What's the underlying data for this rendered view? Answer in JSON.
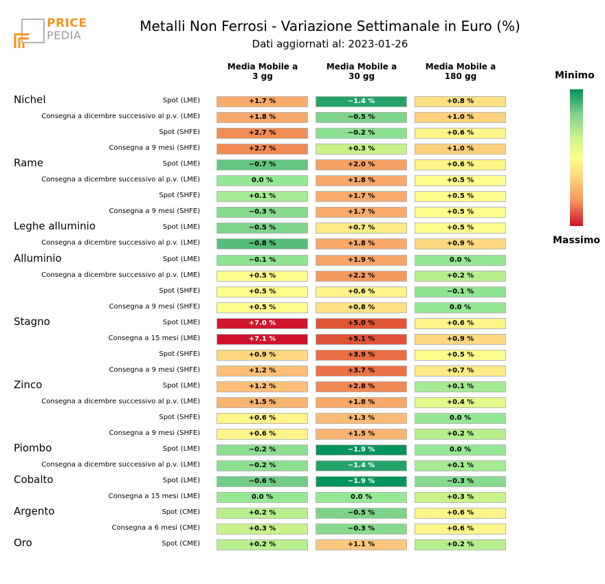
{
  "header": {
    "logo_line1": "PRICE",
    "logo_line2": "PEDIA",
    "title": "Metalli Non Ferrosi - Variazione Settimanale in Euro (%)",
    "subtitle": "Dati aggiornati al: 2023-01-26"
  },
  "legend": {
    "top_label": "Minimo",
    "bottom_label": "Massimo",
    "colors": [
      "#00915a",
      "#7dd38a",
      "#c8f28a",
      "#ffff8c",
      "#ffd27d",
      "#f5945c",
      "#d0102a"
    ]
  },
  "chart_data": {
    "type": "heatmap",
    "title": "Metalli Non Ferrosi - Variazione Settimanale in Euro (%)",
    "columns": [
      "Media Mobile a\n3 gg",
      "Media Mobile a\n30 gg",
      "Media Mobile a\n180 gg"
    ],
    "color_min": -2.0,
    "color_max": 7.1,
    "groups": [
      {
        "metal": "Nichel",
        "rows": [
          {
            "label": "Spot (LME)",
            "values": [
              1.7,
              -1.4,
              0.8
            ],
            "text": [
              "+1.7 %",
              "−1.4 %",
              "+0.8 %"
            ]
          },
          {
            "label": "Consegna a dicembre successivo al p.v. (LME)",
            "values": [
              1.8,
              -0.5,
              1.0
            ],
            "text": [
              "+1.8 %",
              "−0.5 %",
              "+1.0 %"
            ]
          },
          {
            "label": "Spot (SHFE)",
            "values": [
              2.7,
              -0.2,
              0.6
            ],
            "text": [
              "+2.7 %",
              "−0.2 %",
              "+0.6 %"
            ]
          },
          {
            "label": "Consegna a 9 mesi (SHFE)",
            "values": [
              2.7,
              0.3,
              1.0
            ],
            "text": [
              "+2.7 %",
              "+0.3 %",
              "+1.0 %"
            ]
          }
        ]
      },
      {
        "metal": "Rame",
        "rows": [
          {
            "label": "Spot (LME)",
            "values": [
              -0.7,
              2.0,
              0.6
            ],
            "text": [
              "−0.7 %",
              "+2.0 %",
              "+0.6 %"
            ]
          },
          {
            "label": "Consegna a dicembre successivo al p.v. (LME)",
            "values": [
              0.0,
              1.8,
              0.5
            ],
            "text": [
              "0.0 %",
              "+1.8 %",
              "+0.5 %"
            ]
          },
          {
            "label": "Spot (SHFE)",
            "values": [
              0.1,
              1.7,
              0.5
            ],
            "text": [
              "+0.1 %",
              "+1.7 %",
              "+0.5 %"
            ]
          },
          {
            "label": "Consegna a 9 mesi (SHFE)",
            "values": [
              -0.3,
              1.7,
              0.5
            ],
            "text": [
              "−0.3 %",
              "+1.7 %",
              "+0.5 %"
            ]
          }
        ]
      },
      {
        "metal": "Leghe alluminio",
        "rows": [
          {
            "label": "Spot (LME)",
            "values": [
              -0.5,
              0.7,
              0.5
            ],
            "text": [
              "−0.5 %",
              "+0.7 %",
              "+0.5 %"
            ]
          },
          {
            "label": "Consegna a dicembre successivo al p.v. (LME)",
            "values": [
              -0.8,
              1.8,
              0.9
            ],
            "text": [
              "−0.8 %",
              "+1.8 %",
              "+0.9 %"
            ]
          }
        ]
      },
      {
        "metal": "Alluminio",
        "rows": [
          {
            "label": "Spot (LME)",
            "values": [
              -0.1,
              1.9,
              0.0
            ],
            "text": [
              "−0.1 %",
              "+1.9 %",
              "0.0 %"
            ]
          },
          {
            "label": "Consegna a dicembre successivo al p.v. (LME)",
            "values": [
              0.5,
              2.2,
              0.2
            ],
            "text": [
              "+0.5 %",
              "+2.2 %",
              "+0.2 %"
            ]
          },
          {
            "label": "Spot (SHFE)",
            "values": [
              0.5,
              0.6,
              -0.1
            ],
            "text": [
              "+0.5 %",
              "+0.6 %",
              "−0.1 %"
            ]
          },
          {
            "label": "Consegna a 9 mesi (SHFE)",
            "values": [
              0.5,
              0.8,
              0.0
            ],
            "text": [
              "+0.5 %",
              "+0.8 %",
              "0.0 %"
            ]
          }
        ]
      },
      {
        "metal": "Stagno",
        "rows": [
          {
            "label": "Spot (LME)",
            "values": [
              7.0,
              5.0,
              0.6
            ],
            "text": [
              "+7.0 %",
              "+5.0 %",
              "+0.6 %"
            ]
          },
          {
            "label": "Consegna a 15 mesi (LME)",
            "values": [
              7.1,
              5.1,
              0.9
            ],
            "text": [
              "+7.1 %",
              "+5.1 %",
              "+0.9 %"
            ]
          },
          {
            "label": "Spot (SHFE)",
            "values": [
              0.9,
              3.9,
              0.5
            ],
            "text": [
              "+0.9 %",
              "+3.9 %",
              "+0.5 %"
            ]
          },
          {
            "label": "Consegna a 9 mesi (SHFE)",
            "values": [
              1.2,
              3.7,
              0.7
            ],
            "text": [
              "+1.2 %",
              "+3.7 %",
              "+0.7 %"
            ]
          }
        ]
      },
      {
        "metal": "Zinco",
        "rows": [
          {
            "label": "Spot (LME)",
            "values": [
              1.2,
              2.8,
              0.1
            ],
            "text": [
              "+1.2 %",
              "+2.8 %",
              "+0.1 %"
            ]
          },
          {
            "label": "Consegna a dicembre successivo al p.v. (LME)",
            "values": [
              1.5,
              1.8,
              0.4
            ],
            "text": [
              "+1.5 %",
              "+1.8 %",
              "+0.4 %"
            ]
          },
          {
            "label": "Spot (SHFE)",
            "values": [
              0.6,
              1.3,
              0.0
            ],
            "text": [
              "+0.6 %",
              "+1.3 %",
              "0.0 %"
            ]
          },
          {
            "label": "Consegna a 9 mesi (SHFE)",
            "values": [
              0.6,
              1.5,
              0.2
            ],
            "text": [
              "+0.6 %",
              "+1.5 %",
              "+0.2 %"
            ]
          }
        ]
      },
      {
        "metal": "Piombo",
        "rows": [
          {
            "label": "Spot (LME)",
            "values": [
              -0.2,
              -1.9,
              0.0
            ],
            "text": [
              "−0.2 %",
              "−1.9 %",
              "0.0 %"
            ]
          },
          {
            "label": "Consegna a dicembre successivo al p.v. (LME)",
            "values": [
              -0.2,
              -1.4,
              0.1
            ],
            "text": [
              "−0.2 %",
              "−1.4 %",
              "+0.1 %"
            ]
          }
        ]
      },
      {
        "metal": "Cobalto",
        "rows": [
          {
            "label": "Spot (LME)",
            "values": [
              -0.6,
              -1.9,
              -0.3
            ],
            "text": [
              "−0.6 %",
              "−1.9 %",
              "−0.3 %"
            ]
          },
          {
            "label": "Consegna a 15 mesi (LME)",
            "values": [
              0.0,
              0.0,
              0.3
            ],
            "text": [
              "0.0 %",
              "0.0 %",
              "+0.3 %"
            ]
          }
        ]
      },
      {
        "metal": "Argento",
        "rows": [
          {
            "label": "Spot (CME)",
            "values": [
              0.2,
              -0.5,
              0.6
            ],
            "text": [
              "+0.2 %",
              "−0.5 %",
              "+0.6 %"
            ]
          },
          {
            "label": "Consegna a 6 mesi (CME)",
            "values": [
              0.3,
              -0.3,
              0.6
            ],
            "text": [
              "+0.3 %",
              "−0.3 %",
              "+0.6 %"
            ]
          }
        ]
      },
      {
        "metal": "Oro",
        "rows": [
          {
            "label": "Spot (CME)",
            "values": [
              0.2,
              1.1,
              0.2
            ],
            "text": [
              "+0.2 %",
              "+1.1 %",
              "+0.2 %"
            ]
          }
        ]
      }
    ]
  }
}
